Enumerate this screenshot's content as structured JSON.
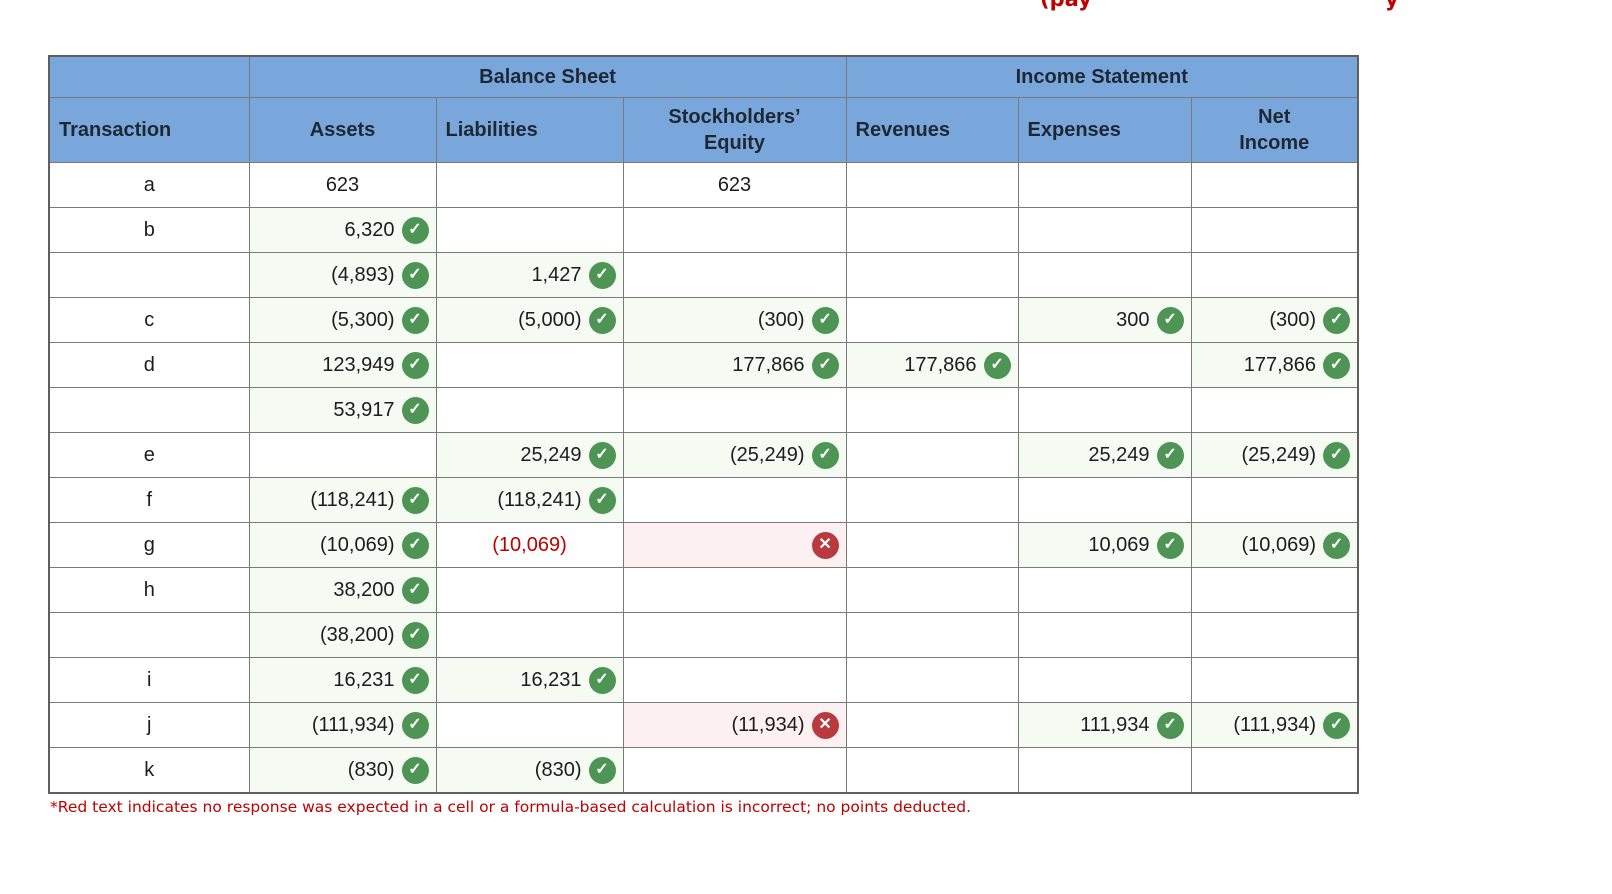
{
  "top_text": {
    "fragment1": "(pay",
    "fragment2": "y"
  },
  "table": {
    "groups": [
      {
        "label": "Balance Sheet"
      },
      {
        "label": "Income Statement"
      }
    ],
    "columns": [
      "Transaction",
      "Assets",
      "Liabilities",
      "Stockholders’ Equity",
      "Revenues",
      "Expenses",
      "Net Income"
    ],
    "rows": [
      {
        "t": "a",
        "cells": [
          {
            "v": "623",
            "s": "plain"
          },
          null,
          {
            "v": "623",
            "s": "plain"
          },
          null,
          null,
          null
        ]
      },
      {
        "t": "b",
        "cells": [
          {
            "v": "6,320",
            "s": "ok"
          },
          null,
          null,
          null,
          null,
          null
        ]
      },
      {
        "t": "",
        "cells": [
          {
            "v": "(4,893)",
            "s": "ok"
          },
          {
            "v": "1,427",
            "s": "ok"
          },
          null,
          null,
          null,
          null
        ]
      },
      {
        "t": "c",
        "cells": [
          {
            "v": "(5,300)",
            "s": "ok"
          },
          {
            "v": "(5,000)",
            "s": "ok"
          },
          {
            "v": "(300)",
            "s": "ok"
          },
          null,
          {
            "v": "300",
            "s": "ok"
          },
          {
            "v": "(300)",
            "s": "ok"
          }
        ]
      },
      {
        "t": "d",
        "cells": [
          {
            "v": "123,949",
            "s": "ok"
          },
          null,
          {
            "v": "177,866",
            "s": "ok"
          },
          {
            "v": "177,866",
            "s": "ok"
          },
          null,
          {
            "v": "177,866",
            "s": "ok"
          }
        ]
      },
      {
        "t": "",
        "cells": [
          {
            "v": "53,917",
            "s": "ok"
          },
          null,
          null,
          null,
          null,
          null
        ]
      },
      {
        "t": "e",
        "cells": [
          null,
          {
            "v": "25,249",
            "s": "ok"
          },
          {
            "v": "(25,249)",
            "s": "ok"
          },
          null,
          {
            "v": "25,249",
            "s": "ok"
          },
          {
            "v": "(25,249)",
            "s": "ok"
          }
        ]
      },
      {
        "t": "f",
        "cells": [
          {
            "v": "(118,241)",
            "s": "ok"
          },
          {
            "v": "(118,241)",
            "s": "ok"
          },
          null,
          null,
          null,
          null
        ]
      },
      {
        "t": "g",
        "cells": [
          {
            "v": "(10,069)",
            "s": "ok"
          },
          {
            "v": "(10,069)",
            "s": "redtext"
          },
          {
            "v": "",
            "s": "wrong"
          },
          null,
          {
            "v": "10,069",
            "s": "ok"
          },
          {
            "v": "(10,069)",
            "s": "ok"
          }
        ]
      },
      {
        "t": "h",
        "cells": [
          {
            "v": "38,200",
            "s": "ok"
          },
          null,
          null,
          null,
          null,
          null
        ]
      },
      {
        "t": "",
        "cells": [
          {
            "v": "(38,200)",
            "s": "ok"
          },
          null,
          null,
          null,
          null,
          null
        ]
      },
      {
        "t": "i",
        "cells": [
          {
            "v": "16,231",
            "s": "ok"
          },
          {
            "v": "16,231",
            "s": "ok"
          },
          null,
          null,
          null,
          null
        ]
      },
      {
        "t": "j",
        "cells": [
          {
            "v": "(111,934)",
            "s": "ok"
          },
          null,
          {
            "v": "(11,934)",
            "s": "wrong"
          },
          null,
          {
            "v": "111,934",
            "s": "ok"
          },
          {
            "v": "(111,934)",
            "s": "ok"
          }
        ]
      },
      {
        "t": "k",
        "cells": [
          {
            "v": "(830)",
            "s": "ok"
          },
          {
            "v": "(830)",
            "s": "ok"
          },
          null,
          null,
          null,
          null
        ]
      }
    ]
  },
  "icons": {
    "correct_glyph": "✓",
    "incorrect_glyph": "✕"
  },
  "colors": {
    "header_bg": "#79a7dc",
    "correct_cell_bg": "#f5faf3",
    "incorrect_cell_bg": "#fdf0f2",
    "check_green": "#4e9555",
    "x_red": "#b8393e",
    "red_text": "#c00000"
  },
  "footnote": "*Red text indicates no response was expected in a cell or a formula-based calculation is incorrect; no points deducted."
}
